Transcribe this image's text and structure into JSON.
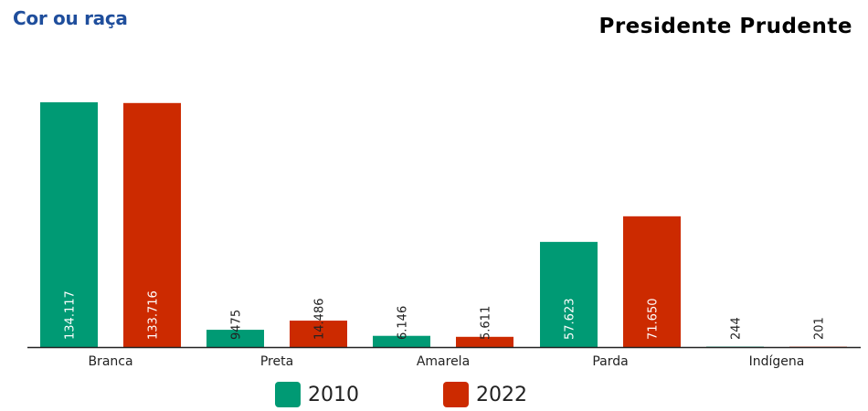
{
  "header": {
    "title": "Cor ou raça",
    "city": "Presidente Prudente"
  },
  "colors": {
    "series_2010": "#009a74",
    "series_2022": "#cc2a00",
    "title": "#1f4e9c"
  },
  "legend": [
    {
      "label": "2010",
      "color_key": "series_2010"
    },
    {
      "label": "2022",
      "color_key": "series_2022"
    }
  ],
  "chart_data": {
    "type": "bar",
    "title": "Cor ou raça",
    "categories": [
      "Branca",
      "Preta",
      "Amarela",
      "Parda",
      "Indígena"
    ],
    "series": [
      {
        "name": "2010",
        "values": [
          134117,
          9475,
          6146,
          57623,
          244
        ],
        "labels": [
          "134.117",
          "9475",
          "6.146",
          "57.623",
          "244"
        ]
      },
      {
        "name": "2022",
        "values": [
          133716,
          14486,
          5611,
          71650,
          201
        ],
        "labels": [
          "133.716",
          "14.486",
          "5.611",
          "71.650",
          "201"
        ]
      }
    ],
    "ylim": [
      0,
      134117
    ],
    "grid": false,
    "legend_position": "bottom"
  }
}
